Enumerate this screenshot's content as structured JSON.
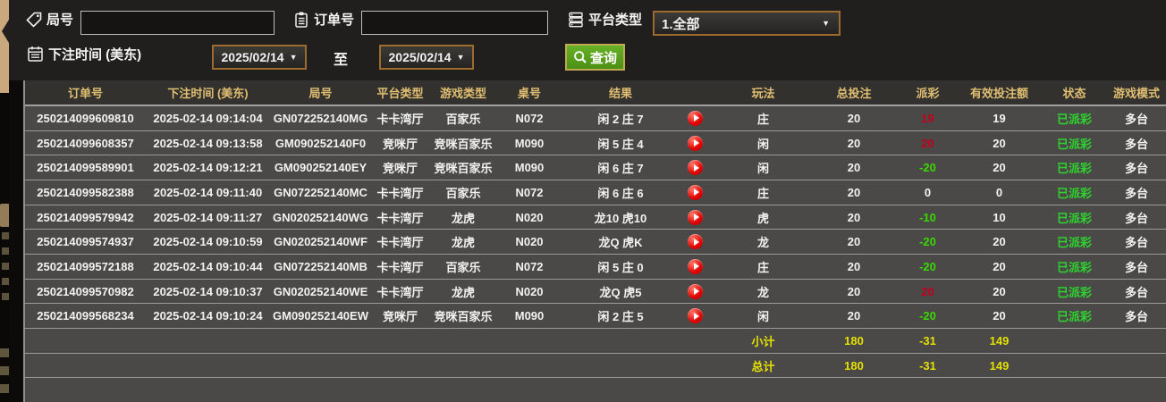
{
  "toolbar": {
    "game_no_label": "局号",
    "game_no_value": "",
    "order_no_label": "订单号",
    "order_no_value": "",
    "platform_type_label": "平台类型",
    "platform_type_value": "1.全部",
    "bet_time_label": "下注时间 (美东)",
    "date_from": "2025/02/14",
    "to_label": "至",
    "date_to": "2025/02/14",
    "query_label": "查询"
  },
  "icons": {
    "game_no": "tag-icon",
    "order_no": "clipboard-icon",
    "bet_time": "calendar-icon",
    "platform_type": "server-icon",
    "query": "search-icon",
    "result_replay": "play-icon",
    "dropdown": "chevron-down-icon"
  },
  "colors": {
    "accent_border": "#9c6b2d",
    "button_green": "#55991b",
    "button_border": "#c0ab52",
    "header_text": "#e0be72",
    "payout_positive": "#c1001e",
    "payout_negative": "#39d800",
    "payout_zero": "#f2f2f2",
    "status_settled": "#2fd32f",
    "summary_yellow": "#e4e000"
  },
  "table": {
    "headers": [
      "订单号",
      "下注时间 (美东)",
      "局号",
      "平台类型",
      "游戏类型",
      "桌号",
      "结果",
      "玩法",
      "总投注",
      "派彩",
      "有效投注额",
      "状态",
      "游戏模式"
    ],
    "rows": [
      {
        "order_id": "250214099609810",
        "bet_time": "2025-02-14 09:14:04",
        "game_no": "GN072252140MG",
        "platform": "卡卡湾厅",
        "game_type": "百家乐",
        "table_no": "N072",
        "result": "闲 2 庄 7",
        "play": "庄",
        "total_bet": "20",
        "payout": "19",
        "valid_bet": "19",
        "status": "已派彩",
        "mode": "多台"
      },
      {
        "order_id": "250214099608357",
        "bet_time": "2025-02-14 09:13:58",
        "game_no": "GM090252140F0",
        "platform": "竞咪厅",
        "game_type": "竞咪百家乐",
        "table_no": "M090",
        "result": "闲 5 庄 4",
        "play": "闲",
        "total_bet": "20",
        "payout": "20",
        "valid_bet": "20",
        "status": "已派彩",
        "mode": "多台"
      },
      {
        "order_id": "250214099589901",
        "bet_time": "2025-02-14 09:12:21",
        "game_no": "GM090252140EY",
        "platform": "竞咪厅",
        "game_type": "竞咪百家乐",
        "table_no": "M090",
        "result": "闲 6 庄 7",
        "play": "闲",
        "total_bet": "20",
        "payout": "-20",
        "valid_bet": "20",
        "status": "已派彩",
        "mode": "多台"
      },
      {
        "order_id": "250214099582388",
        "bet_time": "2025-02-14 09:11:40",
        "game_no": "GN072252140MC",
        "platform": "卡卡湾厅",
        "game_type": "百家乐",
        "table_no": "N072",
        "result": "闲 6 庄 6",
        "play": "庄",
        "total_bet": "20",
        "payout": "0",
        "valid_bet": "0",
        "status": "已派彩",
        "mode": "多台"
      },
      {
        "order_id": "250214099579942",
        "bet_time": "2025-02-14 09:11:27",
        "game_no": "GN020252140WG",
        "platform": "卡卡湾厅",
        "game_type": "龙虎",
        "table_no": "N020",
        "result": "龙10 虎10",
        "play": "虎",
        "total_bet": "20",
        "payout": "-10",
        "valid_bet": "10",
        "status": "已派彩",
        "mode": "多台"
      },
      {
        "order_id": "250214099574937",
        "bet_time": "2025-02-14 09:10:59",
        "game_no": "GN020252140WF",
        "platform": "卡卡湾厅",
        "game_type": "龙虎",
        "table_no": "N020",
        "result": "龙Q 虎K",
        "play": "龙",
        "total_bet": "20",
        "payout": "-20",
        "valid_bet": "20",
        "status": "已派彩",
        "mode": "多台"
      },
      {
        "order_id": "250214099572188",
        "bet_time": "2025-02-14 09:10:44",
        "game_no": "GN072252140MB",
        "platform": "卡卡湾厅",
        "game_type": "百家乐",
        "table_no": "N072",
        "result": "闲 5 庄 0",
        "play": "庄",
        "total_bet": "20",
        "payout": "-20",
        "valid_bet": "20",
        "status": "已派彩",
        "mode": "多台"
      },
      {
        "order_id": "250214099570982",
        "bet_time": "2025-02-14 09:10:37",
        "game_no": "GN020252140WE",
        "platform": "卡卡湾厅",
        "game_type": "龙虎",
        "table_no": "N020",
        "result": "龙Q 虎5",
        "play": "龙",
        "total_bet": "20",
        "payout": "20",
        "valid_bet": "20",
        "status": "已派彩",
        "mode": "多台"
      },
      {
        "order_id": "250214099568234",
        "bet_time": "2025-02-14 09:10:24",
        "game_no": "GM090252140EW",
        "platform": "竞咪厅",
        "game_type": "竞咪百家乐",
        "table_no": "M090",
        "result": "闲 2 庄 5",
        "play": "闲",
        "total_bet": "20",
        "payout": "-20",
        "valid_bet": "20",
        "status": "已派彩",
        "mode": "多台"
      }
    ],
    "subtotal": {
      "label": "小计",
      "total_bet": "180",
      "payout": "-31",
      "valid_bet": "149"
    },
    "total": {
      "label": "总计",
      "total_bet": "180",
      "payout": "-31",
      "valid_bet": "149"
    }
  }
}
